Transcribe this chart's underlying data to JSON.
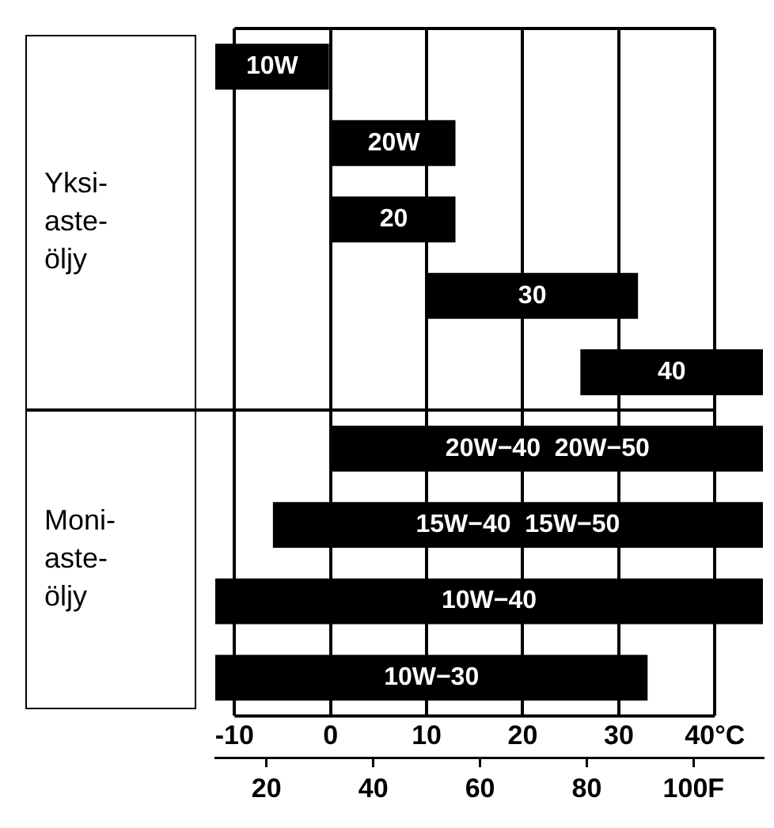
{
  "chart_data": {
    "type": "bar",
    "orientation": "horizontal",
    "categories": [
      "10W",
      "20W",
      "20",
      "30",
      "40",
      "20W−40  20W−50",
      "15W−40  15W−50",
      "10W−40",
      "10W−30"
    ],
    "base": [
      -12,
      0,
      0,
      10,
      26,
      0,
      -6,
      -12,
      -12
    ],
    "values": [
      12,
      13,
      13,
      22,
      19,
      45,
      51,
      57,
      45
    ],
    "color": "#000000",
    "xlim": [
      -12,
      45
    ],
    "xticks": [
      -10,
      0,
      10,
      20,
      30,
      {
        "value": 40,
        "label": "40°C"
      }
    ],
    "x2lim": [
      10.4,
      113
    ],
    "x2ticks": [
      20,
      40,
      60,
      80,
      {
        "value": 100,
        "label": "100F"
      }
    ],
    "grid": "x",
    "legend": false,
    "annotations": [
      "Yksi-\naste-\nöljy",
      "Moni-\naste-\nöljy"
    ]
  }
}
